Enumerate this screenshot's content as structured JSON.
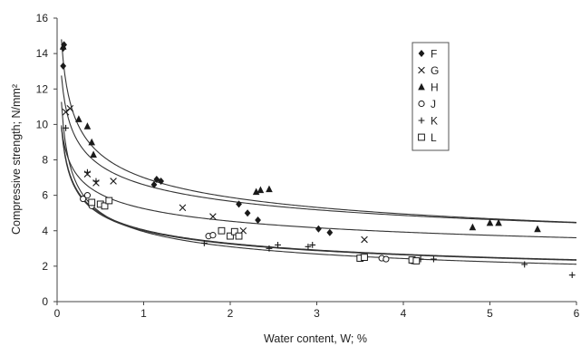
{
  "chart_data": {
    "type": "scatter",
    "title": "",
    "xlabel": "Water content, W; %",
    "ylabel": "Compressive strength; N/mm²",
    "xlim": [
      0,
      6
    ],
    "ylim": [
      0,
      16
    ],
    "xticks": [
      0,
      1,
      2,
      3,
      4,
      5,
      6
    ],
    "yticks": [
      0,
      2,
      4,
      6,
      8,
      10,
      12,
      14,
      16
    ],
    "grid": false,
    "legend_position": "top-right",
    "marker_color": "#1a1a1a",
    "series": [
      {
        "name": "F",
        "marker": "diamond",
        "points": [
          [
            0.07,
            14.3
          ],
          [
            0.08,
            14.5
          ],
          [
            0.07,
            13.3
          ],
          [
            1.12,
            6.6
          ],
          [
            1.15,
            6.9
          ],
          [
            1.2,
            6.8
          ],
          [
            2.1,
            5.5
          ],
          [
            2.2,
            5.0
          ],
          [
            2.32,
            4.6
          ],
          [
            3.02,
            4.1
          ],
          [
            3.15,
            3.9
          ]
        ],
        "fit": {
          "a": 6.6,
          "b": -0.22
        }
      },
      {
        "name": "G",
        "marker": "x",
        "points": [
          [
            0.1,
            10.7
          ],
          [
            0.15,
            10.9
          ],
          [
            0.35,
            7.2
          ],
          [
            0.45,
            6.7
          ],
          [
            0.65,
            6.8
          ],
          [
            1.45,
            5.3
          ],
          [
            1.8,
            4.8
          ],
          [
            2.15,
            4.0
          ],
          [
            3.55,
            3.5
          ]
        ],
        "fit": {
          "a": 5.25,
          "b": -0.21
        }
      },
      {
        "name": "H",
        "marker": "triangle",
        "points": [
          [
            0.07,
            14.4
          ],
          [
            0.25,
            10.3
          ],
          [
            0.35,
            9.9
          ],
          [
            0.4,
            9.0
          ],
          [
            0.42,
            8.3
          ],
          [
            2.3,
            6.2
          ],
          [
            2.35,
            6.3
          ],
          [
            2.45,
            6.35
          ],
          [
            4.8,
            4.2
          ],
          [
            5.0,
            4.45
          ],
          [
            5.1,
            4.45
          ],
          [
            5.55,
            4.1
          ]
        ],
        "fit": {
          "a": 7.0,
          "b": -0.25
        }
      },
      {
        "name": "J",
        "marker": "circle",
        "points": [
          [
            0.3,
            5.8
          ],
          [
            0.35,
            6.0
          ],
          [
            0.4,
            5.4
          ],
          [
            1.75,
            3.7
          ],
          [
            1.8,
            3.75
          ],
          [
            3.75,
            2.45
          ],
          [
            3.8,
            2.4
          ],
          [
            4.1,
            2.3
          ]
        ],
        "fit": {
          "a": 4.0,
          "b": -0.3
        }
      },
      {
        "name": "K",
        "marker": "plus",
        "points": [
          [
            0.1,
            9.8
          ],
          [
            0.35,
            7.3
          ],
          [
            0.45,
            6.8
          ],
          [
            1.7,
            3.3
          ],
          [
            2.45,
            3.0
          ],
          [
            2.55,
            3.2
          ],
          [
            2.9,
            3.1
          ],
          [
            2.95,
            3.2
          ],
          [
            3.5,
            2.5
          ],
          [
            4.2,
            2.4
          ],
          [
            4.35,
            2.4
          ],
          [
            5.4,
            2.1
          ],
          [
            5.95,
            1.5
          ]
        ],
        "fit": {
          "a": 3.95,
          "b": -0.35
        }
      },
      {
        "name": "L",
        "marker": "square",
        "points": [
          [
            0.4,
            5.6
          ],
          [
            0.5,
            5.5
          ],
          [
            0.55,
            5.4
          ],
          [
            0.6,
            5.7
          ],
          [
            1.9,
            4.0
          ],
          [
            2.0,
            3.7
          ],
          [
            2.05,
            3.95
          ],
          [
            2.1,
            3.7
          ],
          [
            3.5,
            2.45
          ],
          [
            3.55,
            2.5
          ],
          [
            4.1,
            2.35
          ],
          [
            4.15,
            2.3
          ]
        ],
        "fit": {
          "a": 4.05,
          "b": -0.3
        }
      }
    ]
  }
}
